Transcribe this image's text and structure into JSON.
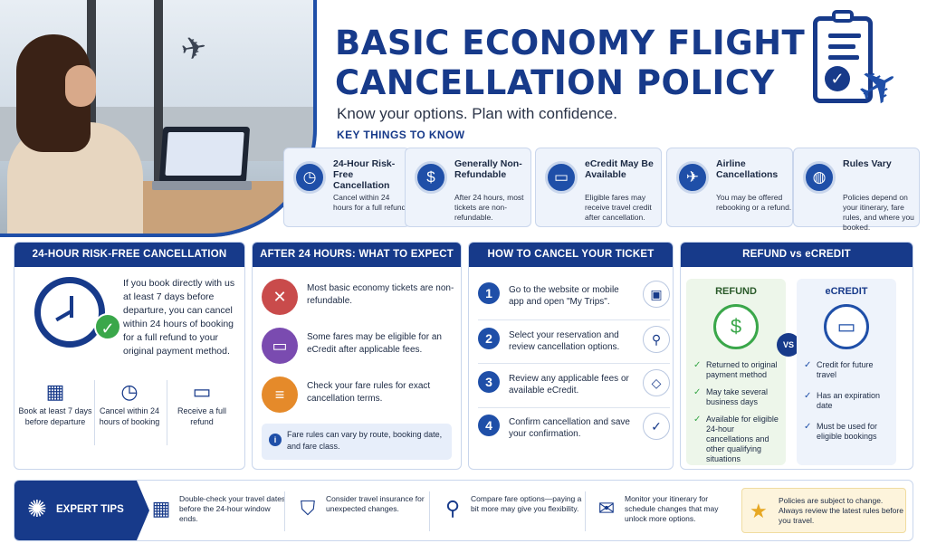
{
  "header": {
    "title_line1": "BASIC ECONOMY FLIGHT",
    "title_line2": "CANCELLATION POLICY",
    "subtitle": "Know your options. Plan with confidence."
  },
  "key_things": {
    "title": "KEY THINGS TO KNOW",
    "cards": [
      {
        "title": "24-Hour Risk-Free Cancellation",
        "desc": "Cancel within 24 hours for a full refund.",
        "icon": "clock-icon"
      },
      {
        "title": "Generally Non-Refundable",
        "desc": "After 24 hours, most tickets are non-refundable.",
        "icon": "dollar-document-icon"
      },
      {
        "title": "eCredit May Be Available",
        "desc": "Eligible fares may receive travel credit after cancellation.",
        "icon": "wallet-icon"
      },
      {
        "title": "Airline Cancellations",
        "desc": "You may be offered rebooking or a refund.",
        "icon": "airplane-icon"
      },
      {
        "title": "Rules Vary",
        "desc": "Policies depend on your itinerary, fare rules, and where you booked.",
        "icon": "globe-icon"
      }
    ]
  },
  "panel_24h": {
    "title": "24-HOUR RISK-FREE CANCELLATION",
    "text": "If you book directly with us at least 7 days before departure, you can cancel within 24 hours of booking for a full refund to your original payment method.",
    "items": [
      {
        "label": "Book at least 7 days before departure",
        "icon": "calendar-icon"
      },
      {
        "label": "Cancel within 24 hours of booking",
        "icon": "clock-icon"
      },
      {
        "label": "Receive a full refund",
        "icon": "credit-card-icon"
      }
    ]
  },
  "panel_after": {
    "title": "AFTER 24 HOURS: WHAT TO EXPECT",
    "items": [
      {
        "text": "Most basic economy tickets are non-refundable.",
        "icon": "x-circle-icon",
        "color": "#c94b4b"
      },
      {
        "text": "Some fares may be eligible for an eCredit after applicable fees.",
        "icon": "wallet-icon",
        "color": "#7a4bb0"
      },
      {
        "text": "Check your fare rules for exact cancellation terms.",
        "icon": "document-icon",
        "color": "#e58a2a"
      }
    ],
    "note": "Fare rules can vary by route, booking date, and fare class."
  },
  "panel_how": {
    "title": "HOW TO CANCEL YOUR TICKET",
    "steps": [
      {
        "num": "1",
        "text": "Go to the website or mobile app and open \"My Trips\".",
        "icon": "monitor-icon"
      },
      {
        "num": "2",
        "text": "Select your reservation and review cancellation options.",
        "icon": "search-icon"
      },
      {
        "num": "3",
        "text": "Review any applicable fees or available eCredit.",
        "icon": "tag-icon"
      },
      {
        "num": "4",
        "text": "Confirm cancellation and save your confirmation.",
        "icon": "check-circle-icon"
      }
    ]
  },
  "panel_refund": {
    "title": "REFUND vs eCREDIT",
    "vs": "VS",
    "refund": {
      "title": "REFUND",
      "icon": "money-icon",
      "items": [
        "Returned to original payment method",
        "May take several business days",
        "Available for eligible 24-hour cancellations and other qualifying situations"
      ]
    },
    "ecredit": {
      "title": "eCREDIT",
      "icon": "credit-card-icon",
      "items": [
        "Credit for future travel",
        "Has an expiration date",
        "Must be used for eligible bookings"
      ]
    }
  },
  "tips": {
    "label": "EXPERT TIPS",
    "items": [
      {
        "text": "Double-check your travel dates before the 24-hour window ends.",
        "icon": "calendar-icon"
      },
      {
        "text": "Consider travel insurance for unexpected changes.",
        "icon": "shield-check-icon"
      },
      {
        "text": "Compare fare options—paying a bit more may give you flexibility.",
        "icon": "search-icon"
      },
      {
        "text": "Monitor your itinerary for schedule changes that may unlock more options.",
        "icon": "mail-icon"
      }
    ],
    "note": "Policies are subject to change. Always review the latest rules before you travel."
  },
  "colors": {
    "navy": "#173a8a",
    "accent_blue": "#1f4fa8",
    "green": "#3aa74a",
    "refund_bg": "#edf6ea",
    "ecredit_bg": "#eef3fb"
  }
}
